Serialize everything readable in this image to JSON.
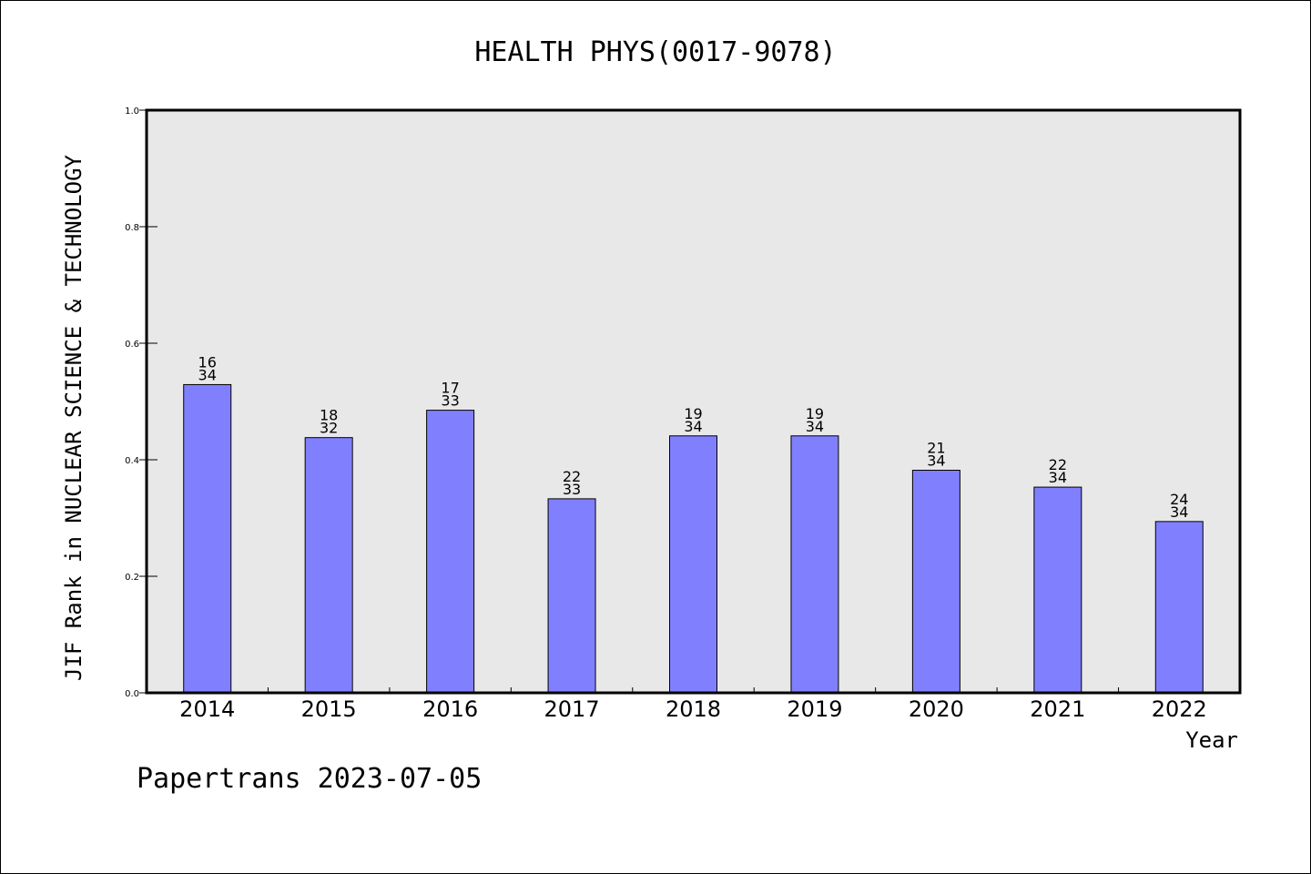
{
  "chart_data": {
    "type": "bar",
    "title": "HEALTH PHYS(0017-9078)",
    "xlabel": "Year",
    "ylabel": "JIF Rank in NUCLEAR SCIENCE & TECHNOLOGY",
    "ylim": [
      0.0,
      1.0
    ],
    "yticks": [
      "0.0",
      "0.2",
      "0.4",
      "0.6",
      "0.8",
      "1.0"
    ],
    "categories": [
      "2014",
      "2015",
      "2016",
      "2017",
      "2018",
      "2019",
      "2020",
      "2021",
      "2022"
    ],
    "values": [
      0.529,
      0.438,
      0.485,
      0.333,
      0.441,
      0.441,
      0.382,
      0.353,
      0.294
    ],
    "ranks": [
      "16",
      "18",
      "17",
      "22",
      "19",
      "19",
      "21",
      "22",
      "24"
    ],
    "totals": [
      "34",
      "32",
      "33",
      "33",
      "34",
      "34",
      "34",
      "34",
      "34"
    ],
    "bar_color": "#8080ff",
    "plot_background": "#e8e8e8",
    "grid": false,
    "legend": "none"
  },
  "footer": "Papertrans 2023-07-05"
}
